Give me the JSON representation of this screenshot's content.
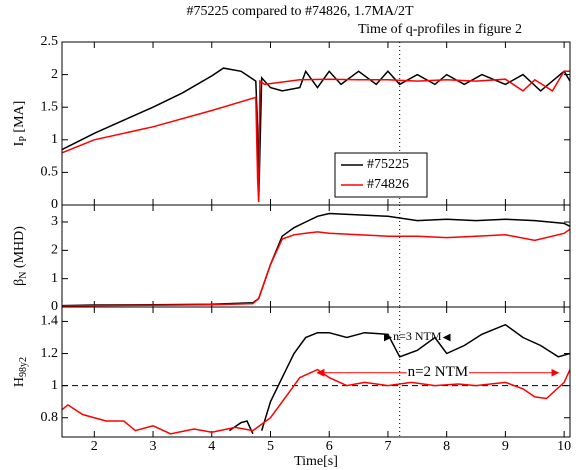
{
  "chart_data": [
    {
      "type": "line",
      "title": "#75225 compared to #74826, 1.7MA/2T",
      "annotation": "Time of q-profiles in figure 2",
      "ylabel": {
        "main": "I",
        "sub": "P",
        "rest": " [MA]"
      },
      "xlim": [
        1.45,
        10.1
      ],
      "xticks": [
        2,
        3,
        4,
        5,
        6,
        7,
        8,
        9,
        10
      ],
      "ylim": [
        0,
        2.5
      ],
      "yticks": [
        0,
        0.5,
        1,
        1.5,
        2,
        2.5
      ],
      "legend": "center-right",
      "vline": 7.2,
      "series": [
        {
          "name": "#75225",
          "color": "#000000",
          "x": [
            1.45,
            2,
            2.5,
            3,
            3.5,
            4,
            4.2,
            4.5,
            4.75,
            4.78,
            4.8,
            4.85,
            5,
            5.2,
            5.5,
            5.6,
            5.8,
            6,
            6.2,
            6.5,
            6.8,
            7,
            7.2,
            7.5,
            7.8,
            8,
            8.3,
            8.6,
            9,
            9.3,
            9.6,
            10,
            10.1
          ],
          "values": [
            0.85,
            1.1,
            1.3,
            1.5,
            1.72,
            1.98,
            2.1,
            2.05,
            1.9,
            1.2,
            0.05,
            1.95,
            1.8,
            1.75,
            1.8,
            2.05,
            1.8,
            2.05,
            1.85,
            2.05,
            1.85,
            2.05,
            1.85,
            2.0,
            1.85,
            2.0,
            1.85,
            2.0,
            1.85,
            2.0,
            1.75,
            2.05,
            1.9
          ]
        },
        {
          "name": "#74826",
          "color": "#ff0000",
          "x": [
            1.45,
            2,
            3,
            4,
            4.75,
            4.78,
            4.8,
            4.82,
            4.9,
            5.5,
            6,
            6.5,
            7,
            7.5,
            8,
            8.5,
            9,
            9.3,
            9.5,
            9.8,
            10,
            10.1
          ],
          "values": [
            0.8,
            1.0,
            1.2,
            1.45,
            1.65,
            0.4,
            0.05,
            1.9,
            1.85,
            1.92,
            1.93,
            1.92,
            1.92,
            1.9,
            1.92,
            1.9,
            1.93,
            1.75,
            1.92,
            1.75,
            2.05,
            2.05
          ]
        }
      ]
    },
    {
      "type": "line",
      "ylabel": {
        "main": "β",
        "sub": "N",
        "rest": " (MHD)"
      },
      "xlim": [
        1.45,
        10.1
      ],
      "xticks": [
        2,
        3,
        4,
        5,
        6,
        7,
        8,
        9,
        10
      ],
      "ylim": [
        0,
        3.6
      ],
      "yticks": [
        0,
        1,
        2,
        3
      ],
      "vline": 7.2,
      "series": [
        {
          "color": "#000000",
          "x": [
            1.45,
            2,
            3,
            4,
            4.7,
            4.8,
            5,
            5.2,
            5.4,
            5.6,
            5.8,
            6,
            6.5,
            7,
            7.5,
            8,
            8.5,
            9,
            9.5,
            10,
            10.1
          ],
          "values": [
            0.05,
            0.07,
            0.08,
            0.1,
            0.15,
            0.3,
            1.5,
            2.5,
            2.8,
            3.0,
            3.2,
            3.3,
            3.25,
            3.2,
            3.05,
            3.1,
            3.05,
            3.1,
            3.05,
            2.95,
            2.85
          ]
        },
        {
          "color": "#ff0000",
          "x": [
            1.45,
            2,
            3,
            4,
            4.7,
            4.8,
            5,
            5.2,
            5.4,
            5.6,
            5.8,
            6,
            6.5,
            7,
            7.5,
            8,
            8.5,
            9,
            9.5,
            10,
            10.1
          ],
          "values": [
            0.03,
            0.05,
            0.06,
            0.08,
            0.12,
            0.3,
            1.5,
            2.4,
            2.55,
            2.6,
            2.65,
            2.6,
            2.55,
            2.5,
            2.5,
            2.45,
            2.5,
            2.55,
            2.35,
            2.6,
            2.75
          ]
        }
      ]
    },
    {
      "type": "line",
      "ylabel": {
        "main": "H",
        "sub": "98y2"
      },
      "xlabel": "Time[s]",
      "xlim": [
        1.45,
        10.1
      ],
      "xticks": [
        2,
        3,
        4,
        5,
        6,
        7,
        8,
        9,
        10
      ],
      "ylim": [
        0.68,
        1.49
      ],
      "yticks": [
        0.8,
        1,
        1.2,
        1.4
      ],
      "vline": 7.2,
      "hline": 1,
      "arrows": [
        {
          "text": "n=3 NTM",
          "color": "#000000",
          "x": [
            7.05,
            7.95
          ],
          "y": 1.3
        },
        {
          "text": "n=2 NTM",
          "color": "#ff0000",
          "x": [
            5.8,
            9.9
          ],
          "y": 1.08
        }
      ],
      "series": [
        {
          "color": "#000000",
          "x": [
            4.3,
            4.5,
            4.6,
            4.7,
            4.75,
            4.85,
            5,
            5.2,
            5.4,
            5.6,
            5.8,
            6,
            6.3,
            6.6,
            7,
            7.2,
            7.5,
            7.8,
            8,
            8.3,
            8.6,
            9,
            9.3,
            9.6,
            9.9,
            10.1
          ],
          "values": [
            0.72,
            0.77,
            0.78,
            0.7,
            null,
            0.72,
            0.9,
            1.05,
            1.2,
            1.3,
            1.33,
            1.33,
            1.3,
            1.33,
            1.32,
            1.18,
            1.22,
            1.3,
            1.2,
            1.25,
            1.32,
            1.38,
            1.3,
            1.25,
            1.18,
            1.2
          ]
        },
        {
          "color": "#ff0000",
          "x": [
            1.45,
            1.55,
            1.8,
            2.2,
            2.5,
            2.7,
            3,
            3.3,
            3.7,
            4,
            4.4,
            4.7,
            5,
            5.3,
            5.5,
            5.8,
            6,
            6.3,
            6.6,
            7,
            7.4,
            7.8,
            8.2,
            8.5,
            9,
            9.3,
            9.5,
            9.7,
            10,
            10.1
          ],
          "values": [
            0.85,
            0.88,
            0.82,
            0.78,
            0.78,
            0.72,
            0.75,
            0.7,
            0.73,
            0.71,
            0.74,
            0.72,
            0.8,
            0.95,
            1.05,
            1.1,
            1.05,
            1.0,
            1.02,
            1.0,
            1.02,
            1.0,
            1.01,
            1.0,
            1.02,
            0.98,
            0.93,
            0.92,
            1.02,
            1.1
          ]
        }
      ]
    }
  ]
}
